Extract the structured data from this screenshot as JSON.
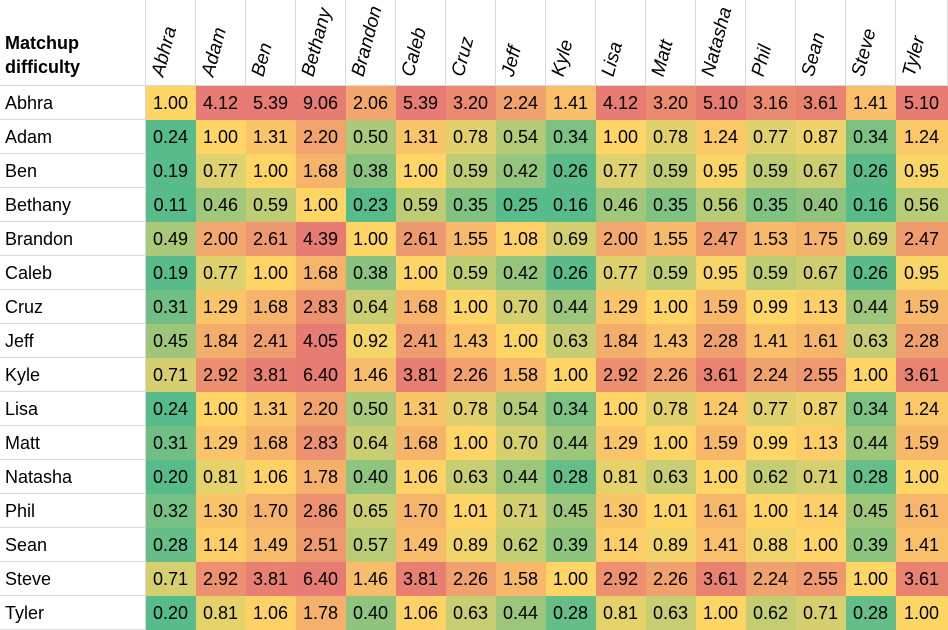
{
  "chart_data": {
    "type": "heatmap",
    "corner_label": "Matchup difficulty",
    "columns": [
      "Abhra",
      "Adam",
      "Ben",
      "Bethany",
      "Brandon",
      "Caleb",
      "Cruz",
      "Jeff",
      "Kyle",
      "Lisa",
      "Matt",
      "Natasha",
      "Phil",
      "Sean",
      "Steve",
      "Tyler"
    ],
    "rows": [
      "Abhra",
      "Adam",
      "Ben",
      "Bethany",
      "Brandon",
      "Caleb",
      "Cruz",
      "Jeff",
      "Kyle",
      "Lisa",
      "Matt",
      "Natasha",
      "Phil",
      "Sean",
      "Steve",
      "Tyler"
    ],
    "values": [
      [
        "1.00",
        "4.12",
        "5.39",
        "9.06",
        "2.06",
        "5.39",
        "3.20",
        "2.24",
        "1.41",
        "4.12",
        "3.20",
        "5.10",
        "3.16",
        "3.61",
        "1.41",
        "5.10"
      ],
      [
        "0.24",
        "1.00",
        "1.31",
        "2.20",
        "0.50",
        "1.31",
        "0.78",
        "0.54",
        "0.34",
        "1.00",
        "0.78",
        "1.24",
        "0.77",
        "0.87",
        "0.34",
        "1.24"
      ],
      [
        "0.19",
        "0.77",
        "1.00",
        "1.68",
        "0.38",
        "1.00",
        "0.59",
        "0.42",
        "0.26",
        "0.77",
        "0.59",
        "0.95",
        "0.59",
        "0.67",
        "0.26",
        "0.95"
      ],
      [
        "0.11",
        "0.46",
        "0.59",
        "1.00",
        "0.23",
        "0.59",
        "0.35",
        "0.25",
        "0.16",
        "0.46",
        "0.35",
        "0.56",
        "0.35",
        "0.40",
        "0.16",
        "0.56"
      ],
      [
        "0.49",
        "2.00",
        "2.61",
        "4.39",
        "1.00",
        "2.61",
        "1.55",
        "1.08",
        "0.69",
        "2.00",
        "1.55",
        "2.47",
        "1.53",
        "1.75",
        "0.69",
        "2.47"
      ],
      [
        "0.19",
        "0.77",
        "1.00",
        "1.68",
        "0.38",
        "1.00",
        "0.59",
        "0.42",
        "0.26",
        "0.77",
        "0.59",
        "0.95",
        "0.59",
        "0.67",
        "0.26",
        "0.95"
      ],
      [
        "0.31",
        "1.29",
        "1.68",
        "2.83",
        "0.64",
        "1.68",
        "1.00",
        "0.70",
        "0.44",
        "1.29",
        "1.00",
        "1.59",
        "0.99",
        "1.13",
        "0.44",
        "1.59"
      ],
      [
        "0.45",
        "1.84",
        "2.41",
        "4.05",
        "0.92",
        "2.41",
        "1.43",
        "1.00",
        "0.63",
        "1.84",
        "1.43",
        "2.28",
        "1.41",
        "1.61",
        "0.63",
        "2.28"
      ],
      [
        "0.71",
        "2.92",
        "3.81",
        "6.40",
        "1.46",
        "3.81",
        "2.26",
        "1.58",
        "1.00",
        "2.92",
        "2.26",
        "3.61",
        "2.24",
        "2.55",
        "1.00",
        "3.61"
      ],
      [
        "0.24",
        "1.00",
        "1.31",
        "2.20",
        "0.50",
        "1.31",
        "0.78",
        "0.54",
        "0.34",
        "1.00",
        "0.78",
        "1.24",
        "0.77",
        "0.87",
        "0.34",
        "1.24"
      ],
      [
        "0.31",
        "1.29",
        "1.68",
        "2.83",
        "0.64",
        "1.68",
        "1.00",
        "0.70",
        "0.44",
        "1.29",
        "1.00",
        "1.59",
        "0.99",
        "1.13",
        "0.44",
        "1.59"
      ],
      [
        "0.20",
        "0.81",
        "1.06",
        "1.78",
        "0.40",
        "1.06",
        "0.63",
        "0.44",
        "0.28",
        "0.81",
        "0.63",
        "1.00",
        "0.62",
        "0.71",
        "0.28",
        "1.00"
      ],
      [
        "0.32",
        "1.30",
        "1.70",
        "2.86",
        "0.65",
        "1.70",
        "1.01",
        "0.71",
        "0.45",
        "1.30",
        "1.01",
        "1.61",
        "1.00",
        "1.14",
        "0.45",
        "1.61"
      ],
      [
        "0.28",
        "1.14",
        "1.49",
        "2.51",
        "0.57",
        "1.49",
        "0.89",
        "0.62",
        "0.39",
        "1.14",
        "0.89",
        "1.41",
        "0.88",
        "1.00",
        "0.39",
        "1.41"
      ],
      [
        "0.71",
        "2.92",
        "3.81",
        "6.40",
        "1.46",
        "3.81",
        "2.26",
        "1.58",
        "1.00",
        "2.92",
        "2.26",
        "3.61",
        "2.24",
        "2.55",
        "1.00",
        "3.61"
      ],
      [
        "0.20",
        "0.81",
        "1.06",
        "1.78",
        "0.40",
        "1.06",
        "0.63",
        "0.44",
        "0.28",
        "0.81",
        "0.63",
        "1.00",
        "0.62",
        "0.71",
        "0.28",
        "1.00"
      ]
    ],
    "color_scale": {
      "low": "#57bb8a",
      "mid": "#ffd666",
      "high": "#e67c73",
      "midpoint": 1.0
    }
  }
}
